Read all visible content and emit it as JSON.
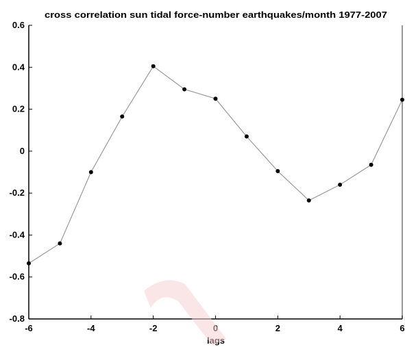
{
  "chart_data": {
    "type": "line",
    "title": "cross correlation sun tidal force-number earthquakes/month 1977-2007",
    "xlabel": "lags",
    "ylabel": "",
    "xlim": [
      -6,
      6
    ],
    "ylim": [
      -0.8,
      0.6
    ],
    "xticks": [
      "-6",
      "-4",
      "-2",
      "0",
      "2",
      "4",
      "6"
    ],
    "yticks": [
      "0.6",
      "0.4",
      "0.2",
      "0",
      "-0.2",
      "-0.4",
      "-0.6",
      "-0.8"
    ],
    "grid": false,
    "legend": "none",
    "series": [
      {
        "x": [
          -6,
          -5,
          -4,
          -3,
          -2,
          -1,
          0,
          1,
          2,
          3,
          4,
          5,
          6
        ],
        "values": [
          -0.535,
          -0.44,
          -0.1,
          0.165,
          0.405,
          0.295,
          0.25,
          0.07,
          -0.095,
          -0.235,
          -0.16,
          -0.065,
          0.245
        ],
        "color": "#9a9a9a",
        "marker_color": "#000000"
      }
    ]
  },
  "colors": {
    "axis": "#000000",
    "line": "#9a9a9a",
    "marker": "#000000",
    "watermark": "#f2c0c0"
  }
}
